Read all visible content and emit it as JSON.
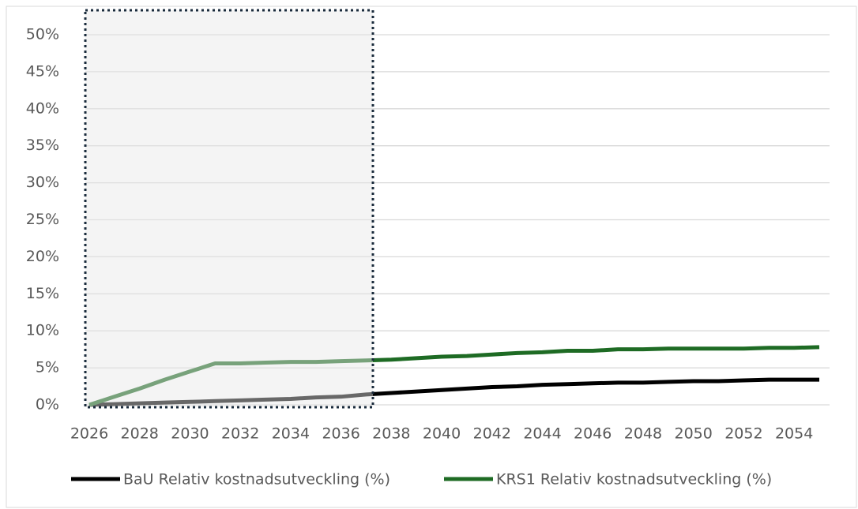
{
  "chart_data": {
    "type": "line",
    "x": [
      2026,
      2027,
      2028,
      2029,
      2030,
      2031,
      2032,
      2033,
      2034,
      2035,
      2036,
      2037,
      2038,
      2039,
      2040,
      2041,
      2042,
      2043,
      2044,
      2045,
      2046,
      2047,
      2048,
      2049,
      2050,
      2051,
      2052,
      2053,
      2054,
      2055
    ],
    "series": [
      {
        "name": "BaU Relativ kostnadsutveckling (%)",
        "color": "#000000",
        "values": [
          0,
          0.1,
          0.2,
          0.3,
          0.4,
          0.5,
          0.6,
          0.7,
          0.8,
          1.0,
          1.1,
          1.4,
          1.6,
          1.8,
          2.0,
          2.2,
          2.4,
          2.5,
          2.7,
          2.8,
          2.9,
          3.0,
          3.0,
          3.1,
          3.2,
          3.2,
          3.3,
          3.4,
          3.4,
          3.4
        ]
      },
      {
        "name": "KRS1 Relativ kostnadsutveckling (%)",
        "color": "#1e6b24",
        "values": [
          0,
          1.1,
          2.2,
          3.4,
          4.5,
          5.6,
          5.6,
          5.7,
          5.8,
          5.8,
          5.9,
          6.0,
          6.1,
          6.3,
          6.5,
          6.6,
          6.8,
          7.0,
          7.1,
          7.3,
          7.3,
          7.5,
          7.5,
          7.6,
          7.6,
          7.6,
          7.6,
          7.7,
          7.7,
          7.8
        ]
      }
    ],
    "xlim": [
      2026,
      2055
    ],
    "xticks": [
      2026,
      2028,
      2030,
      2032,
      2034,
      2036,
      2038,
      2040,
      2042,
      2044,
      2046,
      2048,
      2050,
      2052,
      2054
    ],
    "ylim": [
      0,
      50
    ],
    "yticks": [
      {
        "value": 0,
        "label": "0%"
      },
      {
        "value": 5,
        "label": "5%"
      },
      {
        "value": 10,
        "label": "10%"
      },
      {
        "value": 15,
        "label": "15%"
      },
      {
        "value": 20,
        "label": "20%"
      },
      {
        "value": 25,
        "label": "25%"
      },
      {
        "value": 30,
        "label": "30%"
      },
      {
        "value": 35,
        "label": "35%"
      },
      {
        "value": 40,
        "label": "40%"
      },
      {
        "value": 45,
        "label": "45%"
      },
      {
        "value": 50,
        "label": "50%"
      }
    ],
    "grid": true,
    "legend": "bottom"
  }
}
